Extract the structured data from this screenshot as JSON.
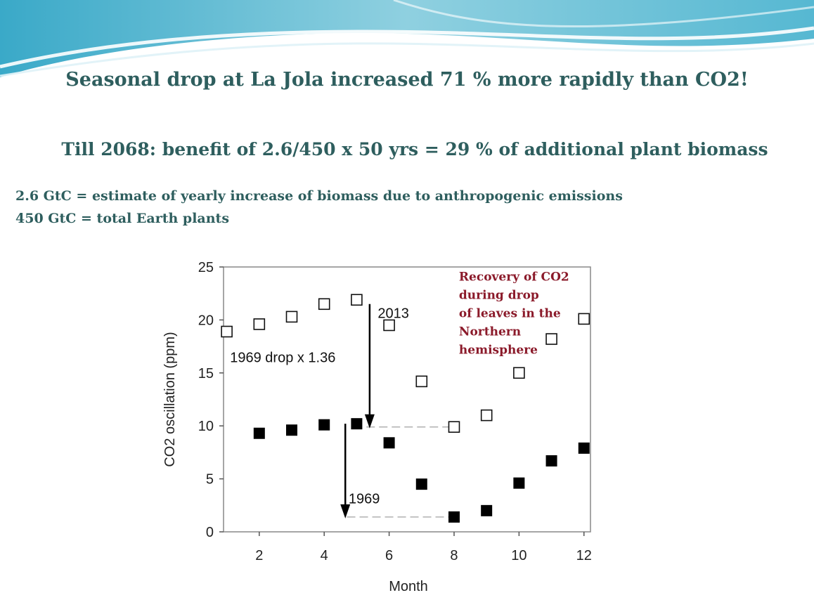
{
  "slide": {
    "title": "Seasonal drop at La Jola increased 71 % more rapidly than CO2!",
    "subtitle": "Till 2068: benefit of 2.6/450 x 50 yrs = 29 % of additional plant biomass",
    "notes": [
      "2.6 GtC = estimate of yearly increase of biomass due to anthropogenic emissions",
      "450 GtC = total Earth plants"
    ]
  },
  "chart_data": {
    "type": "scatter",
    "xlabel": "Month",
    "ylabel": "CO2 oscillation (ppm)",
    "xlim": [
      0.9,
      12.2
    ],
    "ylim": [
      0,
      25
    ],
    "xticks": [
      2,
      4,
      6,
      8,
      10,
      12
    ],
    "yticks": [
      0,
      5,
      10,
      15,
      20,
      25
    ],
    "grid": false,
    "series": [
      {
        "name": "2013",
        "marker": "open-square",
        "x": [
          1,
          2,
          3,
          4,
          5,
          6,
          7,
          8,
          9,
          10,
          11,
          12
        ],
        "y": [
          18.9,
          19.6,
          20.3,
          21.5,
          21.9,
          19.5,
          14.2,
          9.9,
          11.0,
          15.0,
          18.2,
          20.1
        ]
      },
      {
        "name": "1969",
        "marker": "filled-square",
        "x": [
          2,
          3,
          4,
          5,
          6,
          7,
          8,
          9,
          10,
          11,
          12
        ],
        "y": [
          9.3,
          9.6,
          10.1,
          10.2,
          8.4,
          4.5,
          1.4,
          2.0,
          4.6,
          6.7,
          7.9
        ]
      }
    ],
    "annotations": {
      "label_2013": "2013",
      "label_1969": "1969",
      "drop_factor": "1969 drop x 1.36",
      "recovery_lines": [
        "Recovery of CO2",
        "during drop",
        "of leaves in the",
        "Northern",
        "hemisphere"
      ]
    },
    "arrows": [
      {
        "x": 5.4,
        "y_from": 21.5,
        "y_to": 9.9
      },
      {
        "x": 4.65,
        "y_from": 10.2,
        "y_to": 1.4
      }
    ],
    "reference_lines": [
      {
        "y": 9.9,
        "x_from": 5.3,
        "x_to": 7.85
      },
      {
        "y": 1.4,
        "x_from": 4.7,
        "x_to": 7.85
      }
    ]
  }
}
